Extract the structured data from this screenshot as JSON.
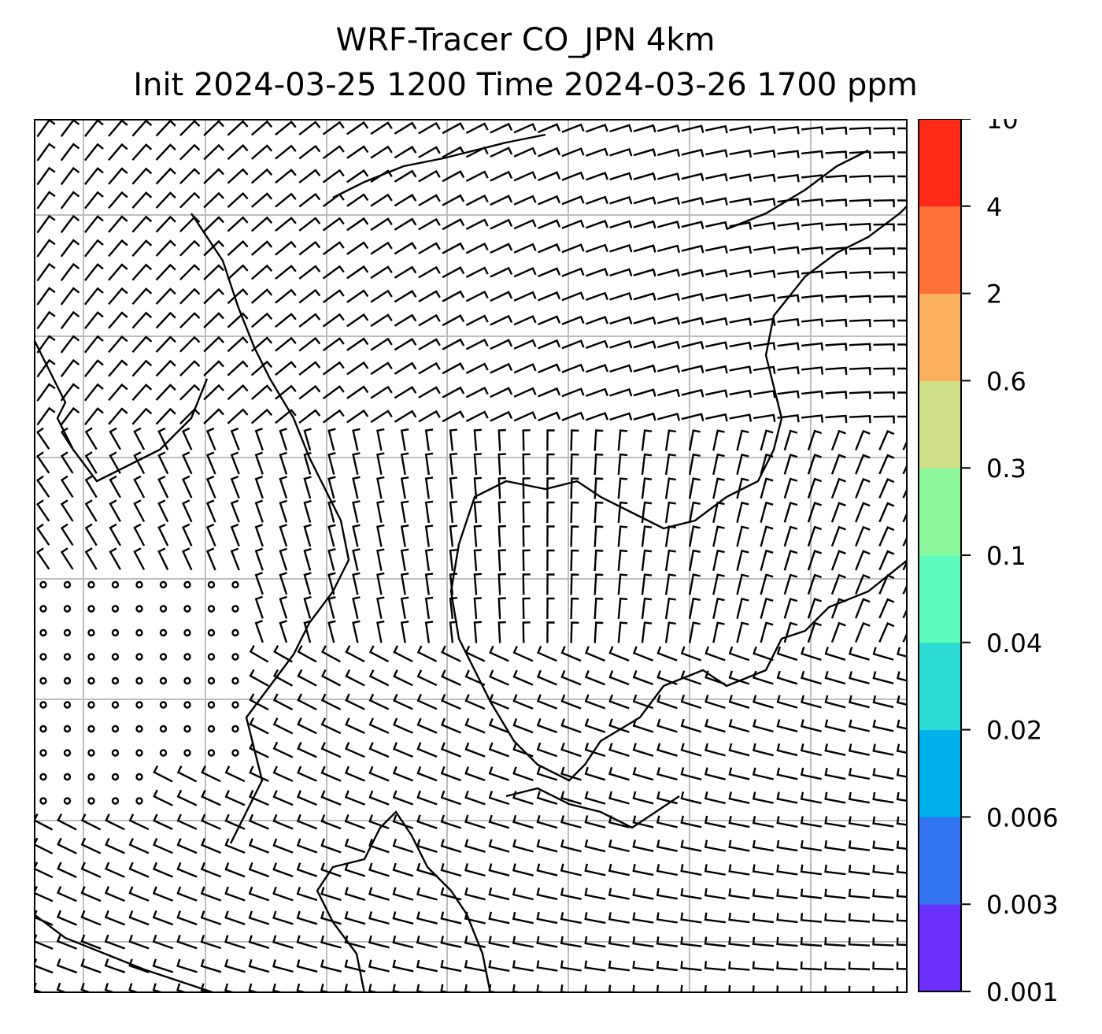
{
  "title": {
    "line1": "WRF-Tracer CO_JPN 4km",
    "line2": "Init 2024-03-25 1200 Time 2024-03-26 1700 ppm"
  },
  "colorbar": {
    "levels": [
      {
        "label": "0.001",
        "color": "#6a2ffb"
      },
      {
        "label": "0.003",
        "color": "#3574f0"
      },
      {
        "label": "0.006",
        "color": "#00b0ea"
      },
      {
        "label": "0.02",
        "color": "#2ddcd2"
      },
      {
        "label": "0.04",
        "color": "#5dfbbb"
      },
      {
        "label": "0.1",
        "color": "#8cf79d"
      },
      {
        "label": "0.3",
        "color": "#cfe088"
      },
      {
        "label": "0.6",
        "color": "#fbb060"
      },
      {
        "label": "2",
        "color": "#ff7138"
      },
      {
        "label": "4",
        "color": "#ff2b18"
      },
      {
        "label": "10",
        "color": null
      }
    ]
  },
  "map": {
    "wind_barbs": "dense field of wind barbs; calm circles over western region",
    "coastline_color": "#000000",
    "gridline_color": "#bdbdbd"
  }
}
